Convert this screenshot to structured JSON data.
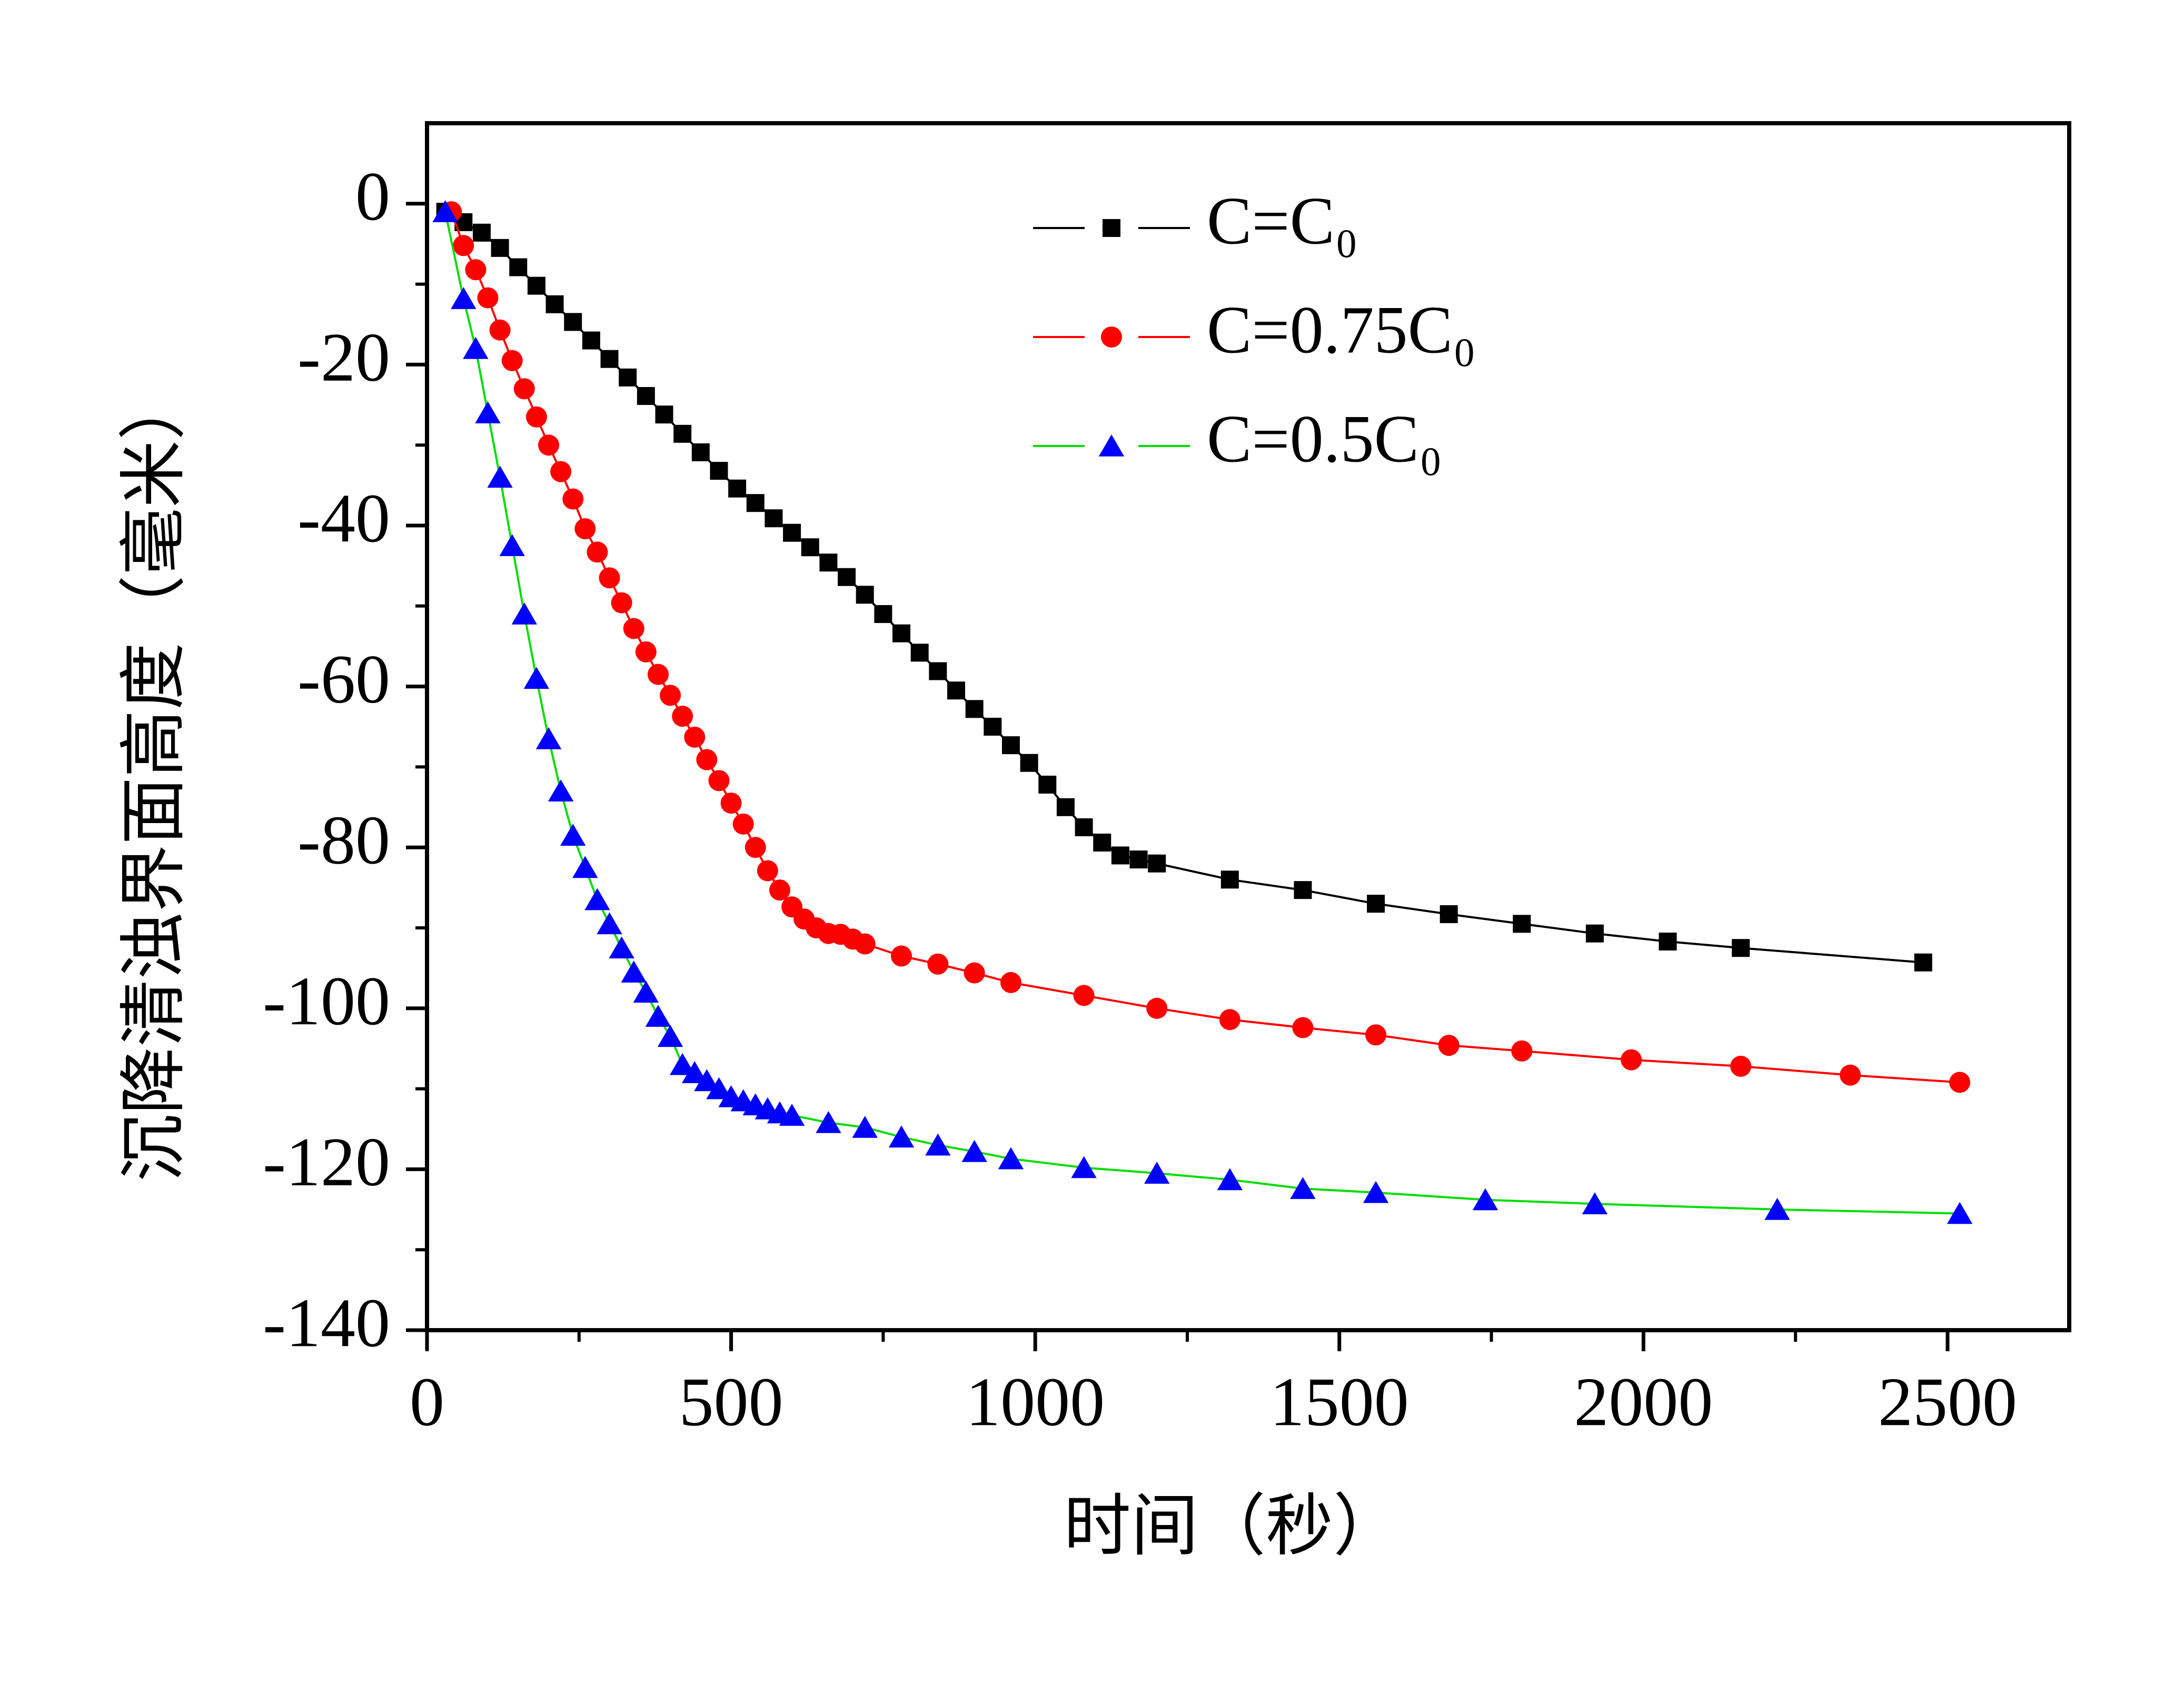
{
  "chart_data": {
    "type": "line",
    "xlabel": "时间（秒）",
    "ylabel": "沉降清浊界面高度（毫米）",
    "xlim": [
      0,
      2700
    ],
    "ylim": [
      -140,
      10
    ],
    "xticks": [
      0,
      500,
      1000,
      1500,
      2000,
      2500
    ],
    "yticks": [
      0,
      -20,
      -40,
      -60,
      -80,
      -100,
      -120,
      -140
    ],
    "xminor_ticks": [
      250,
      750,
      1250,
      1750,
      2250
    ],
    "yminor_ticks": [
      -10,
      -30,
      -50,
      -70,
      -90,
      -110,
      -130
    ],
    "legend": "upper right",
    "series": [
      {
        "name": "C=C₀",
        "color": "#000000",
        "line_color": "#000000",
        "marker": "square",
        "x": [
          30,
          60,
          90,
          120,
          150,
          180,
          210,
          240,
          270,
          300,
          330,
          360,
          390,
          420,
          450,
          480,
          510,
          540,
          570,
          600,
          630,
          660,
          690,
          720,
          750,
          780,
          810,
          840,
          870,
          900,
          930,
          960,
          990,
          1020,
          1050,
          1080,
          1110,
          1140,
          1170,
          1200,
          1320,
          1440,
          1560,
          1680,
          1800,
          1920,
          2040,
          2160,
          2460
        ],
        "values": [
          -1,
          -2.3,
          -3.6,
          -5.5,
          -7.9,
          -10.2,
          -12.5,
          -14.7,
          -17,
          -19.3,
          -21.6,
          -23.9,
          -26.2,
          -28.6,
          -30.9,
          -33.2,
          -35.4,
          -37.2,
          -39.1,
          -40.9,
          -42.7,
          -44.6,
          -46.4,
          -48.6,
          -51,
          -53.4,
          -55.8,
          -58.1,
          -60.5,
          -62.8,
          -65,
          -67.3,
          -69.5,
          -72.2,
          -75,
          -77.5,
          -79.4,
          -81,
          -81.5,
          -82,
          -84,
          -85.3,
          -87,
          -88.3,
          -89.5,
          -90.7,
          -91.7,
          -92.5,
          -94.3
        ]
      },
      {
        "name": "C=0.75C₀",
        "color": "#ff0000",
        "line_color": "#ff0000",
        "marker": "circle",
        "x": [
          40,
          60,
          80,
          100,
          120,
          140,
          160,
          180,
          200,
          220,
          240,
          260,
          280,
          300,
          320,
          340,
          360,
          380,
          400,
          420,
          440,
          460,
          480,
          500,
          520,
          540,
          560,
          580,
          600,
          620,
          640,
          660,
          680,
          700,
          720,
          780,
          840,
          900,
          960,
          1080,
          1200,
          1320,
          1440,
          1560,
          1680,
          1800,
          1980,
          2160,
          2340,
          2520
        ],
        "values": [
          -1,
          -5.2,
          -8.2,
          -11.7,
          -15.7,
          -19.5,
          -23,
          -26.5,
          -30,
          -33.3,
          -36.7,
          -40.4,
          -43.3,
          -46.5,
          -49.6,
          -52.8,
          -55.7,
          -58.5,
          -61.1,
          -63.7,
          -66.3,
          -69.1,
          -71.7,
          -74.5,
          -77.1,
          -80,
          -82.9,
          -85.3,
          -87.4,
          -88.9,
          -90,
          -90.7,
          -90.8,
          -91.4,
          -92,
          -93.5,
          -94.5,
          -95.6,
          -96.8,
          -98.4,
          -100,
          -101.4,
          -102.4,
          -103.3,
          -104.6,
          -105.3,
          -106.4,
          -107.2,
          -108.3,
          -109.2
        ]
      },
      {
        "name": "C=0.5C₀",
        "color": "#0000ff",
        "line_color": "#00dd00",
        "marker": "triangle",
        "x": [
          30,
          60,
          80,
          100,
          120,
          140,
          160,
          180,
          200,
          220,
          240,
          260,
          280,
          300,
          320,
          340,
          360,
          380,
          400,
          420,
          440,
          460,
          480,
          500,
          520,
          540,
          560,
          580,
          600,
          660,
          720,
          780,
          840,
          900,
          960,
          1080,
          1200,
          1320,
          1440,
          1560,
          1740,
          1920,
          2220,
          2520
        ],
        "values": [
          -1,
          -11.8,
          -18,
          -26,
          -34,
          -42.5,
          -51,
          -59,
          -66.5,
          -73,
          -78.5,
          -82.5,
          -86.5,
          -89.5,
          -92.5,
          -95.5,
          -98,
          -101,
          -103.5,
          -107,
          -108,
          -109,
          -110,
          -111,
          -111.5,
          -112,
          -112.5,
          -113,
          -113.3,
          -114.2,
          -114.8,
          -116,
          -117,
          -117.8,
          -118.7,
          -119.8,
          -120.5,
          -121.3,
          -122.4,
          -122.9,
          -123.8,
          -124.3,
          -125,
          -125.5
        ]
      }
    ]
  }
}
